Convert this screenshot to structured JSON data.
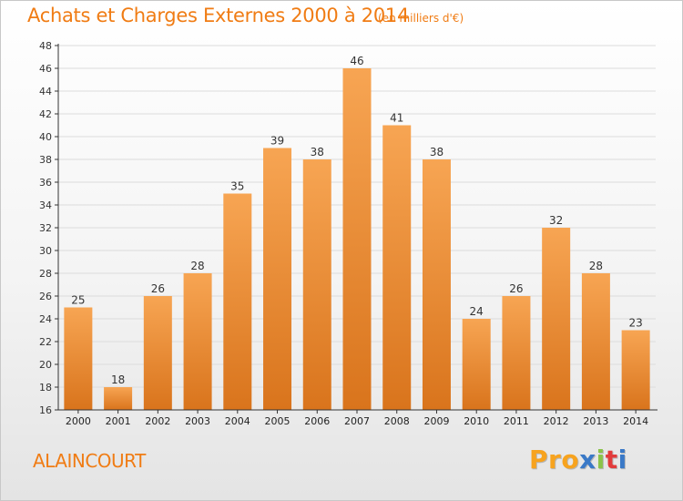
{
  "header": {
    "title": "Achats et Charges Externes 2000 à 2014",
    "unit": "(en milliers d'€)"
  },
  "footer": {
    "place": "ALAINCOURT",
    "logo": [
      "P",
      "r",
      "o",
      "x",
      "i",
      "t",
      "i"
    ]
  },
  "colors": {
    "title": "#f07c14",
    "bar_top": "#f7a553",
    "bar_bottom": "#d9741c",
    "axis": "#333333",
    "grid": "#dcdcdc",
    "logo": [
      "#f7a31e",
      "#f7a31e",
      "#f7a31e",
      "#3a79c7",
      "#8bc34a",
      "#e23b3b",
      "#3a79c7"
    ]
  },
  "chart_data": {
    "type": "bar",
    "title": "Achats et Charges Externes 2000 à 2014",
    "subtitle": "(en milliers d'€)",
    "categories": [
      "2000",
      "2001",
      "2002",
      "2003",
      "2004",
      "2005",
      "2006",
      "2007",
      "2008",
      "2009",
      "2010",
      "2011",
      "2012",
      "2013",
      "2014"
    ],
    "values": [
      25,
      18,
      26,
      28,
      35,
      39,
      38,
      46,
      41,
      38,
      24,
      26,
      32,
      28,
      23
    ],
    "ylim": [
      16,
      48
    ],
    "yticks": [
      16,
      18,
      20,
      22,
      24,
      26,
      28,
      30,
      32,
      34,
      36,
      38,
      40,
      42,
      44,
      46,
      48
    ],
    "grid": true,
    "legend": "none"
  }
}
